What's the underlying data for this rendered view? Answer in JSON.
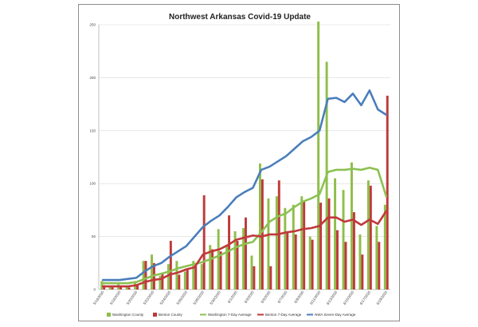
{
  "chart_data": {
    "type": "bar",
    "title": "Northwest Arkansas Covid-19 Update",
    "ylim": [
      0,
      250
    ],
    "yticks": [
      0,
      50,
      100,
      150,
      200,
      250
    ],
    "grid": "horizontal",
    "legend_position": "bottom",
    "categories": [
      "5/16/2020",
      "5/17/2020",
      "5/18/2020",
      "5/19/2020",
      "5/20/2020",
      "5/21/2020",
      "5/22/2020",
      "5/23/2020",
      "5/24/2020",
      "5/25/2020",
      "5/26/2020",
      "5/27/2020",
      "5/28/2020",
      "5/29/2020",
      "5/30/2020",
      "5/31/2020",
      "6/1/2020",
      "6/2/2020",
      "6/3/2020",
      "6/4/2020",
      "6/5/2020",
      "6/6/2020",
      "6/7/2020",
      "6/8/2020",
      "6/9/2020",
      "6/10/2020",
      "6/11/2020",
      "6/12/2020",
      "6/13/2020",
      "6/14/2020",
      "6/15/2020",
      "6/16/2020",
      "6/17/2020",
      "6/18/2020",
      "6/19/2020"
    ],
    "xtick_labels": [
      "5/16/2020",
      "",
      "5/18/2020",
      "",
      "5/20/2020",
      "",
      "5/22/2020",
      "",
      "5/24/2020",
      "",
      "5/26/2020",
      "",
      "5/28/2020",
      "",
      "5/30/2020",
      "",
      "6/1/2020",
      "",
      "6/3/2020",
      "",
      "6/5/2020",
      "",
      "6/7/2020",
      "",
      "6/9/2020",
      "",
      "6/11/2020",
      "",
      "6/13/2020",
      "",
      "6/15/2020",
      "",
      "6/17/2020",
      "",
      "6/19/2020"
    ],
    "series": [
      {
        "name": "Washington County",
        "kind": "bar",
        "color": "#8fbe4a",
        "values": [
          8,
          3,
          5,
          3,
          8,
          27,
          33,
          13,
          24,
          27,
          17,
          27,
          24,
          42,
          57,
          42,
          55,
          58,
          32,
          119,
          86,
          88,
          77,
          80,
          88,
          50,
          253,
          215,
          105,
          94,
          120,
          52,
          103,
          60,
          80
        ]
      },
      {
        "name": "Benton County",
        "kind": "bar",
        "color": "#c0393b",
        "values": [
          4,
          2,
          3,
          2,
          4,
          27,
          25,
          15,
          46,
          14,
          20,
          22,
          89,
          38,
          36,
          70,
          46,
          68,
          22,
          104,
          22,
          103,
          54,
          52,
          84,
          47,
          82,
          86,
          56,
          45,
          73,
          33,
          98,
          45,
          183
        ]
      },
      {
        "name": "Washington 7-Day Average",
        "kind": "line",
        "color": "#8cc152",
        "values": [
          6,
          6,
          6,
          6,
          7,
          10,
          13,
          15,
          17,
          20,
          22,
          24,
          26,
          29,
          32,
          36,
          40,
          43,
          45,
          54,
          64,
          69,
          72,
          78,
          83,
          86,
          90,
          111,
          113,
          113,
          114,
          113,
          115,
          113,
          88
        ]
      },
      {
        "name": "Benton 7-Day Average",
        "kind": "line",
        "color": "#c0393b",
        "values": [
          3,
          3,
          3,
          3,
          4,
          7,
          9,
          10,
          14,
          16,
          19,
          21,
          33,
          36,
          38,
          42,
          47,
          49,
          51,
          50,
          52,
          52,
          54,
          55,
          57,
          58,
          60,
          68,
          68,
          64,
          66,
          61,
          66,
          62,
          74
        ]
      },
      {
        "name": "NWA Seven-Day Average",
        "kind": "line",
        "color": "#4a7ebb",
        "values": [
          9,
          9,
          9,
          10,
          11,
          17,
          22,
          25,
          31,
          36,
          41,
          50,
          59,
          65,
          70,
          78,
          87,
          92,
          96,
          113,
          116,
          121,
          126,
          133,
          140,
          144,
          150,
          180,
          181,
          177,
          185,
          174,
          188,
          170,
          165
        ]
      }
    ]
  }
}
